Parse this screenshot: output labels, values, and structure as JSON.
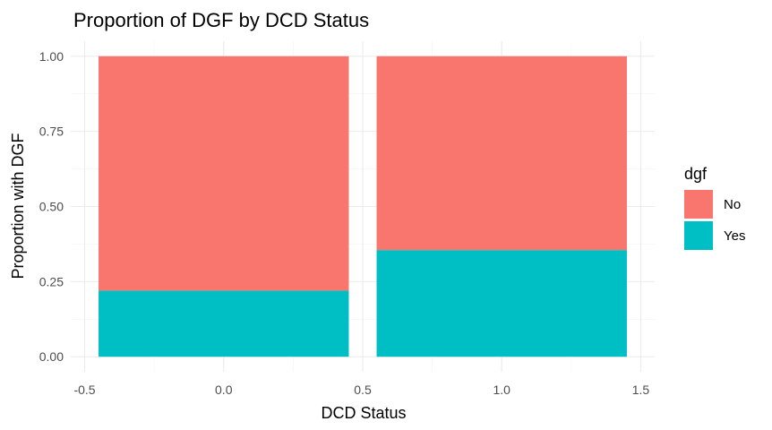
{
  "chart_data": {
    "type": "bar",
    "stacked": true,
    "title": "Proportion of DGF by DCD Status",
    "xlabel": "DCD Status",
    "ylabel": "Proportion with DGF",
    "x": [
      0,
      1
    ],
    "bar_width": 0.9,
    "xlim": [
      -0.5,
      1.5
    ],
    "ylim": [
      0,
      1
    ],
    "x_ticks": [
      -0.5,
      0.0,
      0.5,
      1.0,
      1.5
    ],
    "x_tick_labels": [
      "-0.5",
      "0.0",
      "0.5",
      "1.0",
      "1.5"
    ],
    "y_ticks": [
      0,
      0.25,
      0.5,
      0.75,
      1.0
    ],
    "y_tick_labels": [
      "0.00",
      "0.25",
      "0.50",
      "0.75",
      "1.00"
    ],
    "series": [
      {
        "name": "Yes",
        "color": "#00BFC4",
        "values": [
          0.22,
          0.355
        ]
      },
      {
        "name": "No",
        "color": "#F8766D",
        "values": [
          0.78,
          0.645
        ]
      }
    ],
    "legend": {
      "title": "dgf",
      "position": "right",
      "items": [
        {
          "label": "No",
          "color": "#F8766D"
        },
        {
          "label": "Yes",
          "color": "#00BFC4"
        }
      ]
    },
    "grid": true
  }
}
